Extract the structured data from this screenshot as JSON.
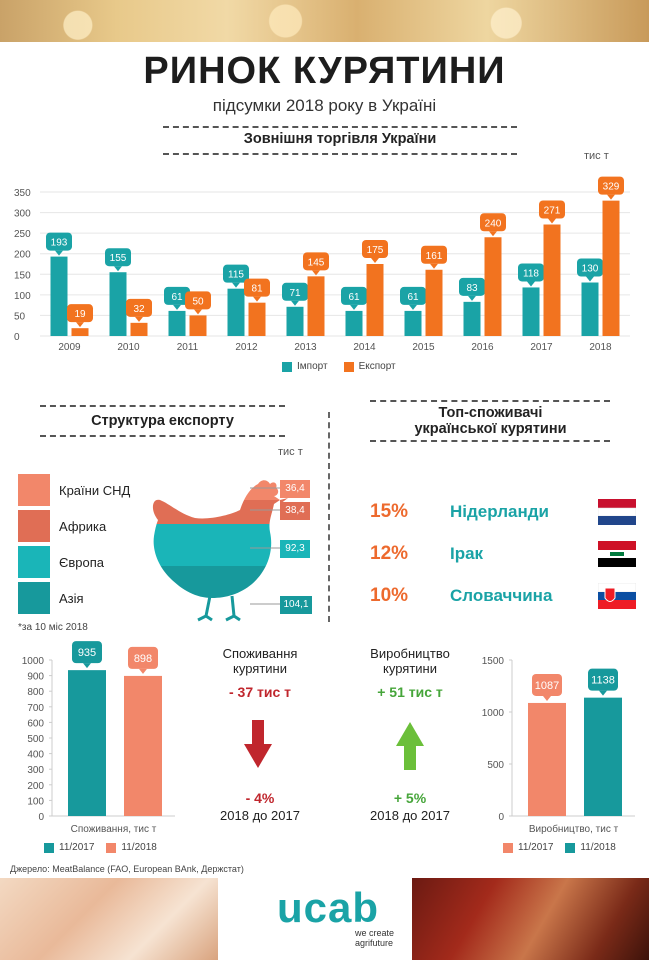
{
  "header": {
    "title": "РИНОК КУРЯТИНИ",
    "subtitle": "підсумки 2018 року в Україні"
  },
  "trade": {
    "heading": "Зовнішня торгівля України",
    "unit": "тис т",
    "legend_import": "Імпорт",
    "legend_export": "Експорт"
  },
  "export_structure": {
    "heading": "Структура експорту",
    "unit": "тис т",
    "note": "*за 10 міс 2018",
    "items": [
      {
        "label": "Країни СНД",
        "value": "36,4",
        "color": "#f2876a"
      },
      {
        "label": "Африка",
        "value": "38,4",
        "color": "#e06e55"
      },
      {
        "label": "Європа",
        "value": "92,3",
        "color": "#1ab5b8"
      },
      {
        "label": "Азія",
        "value": "104,1",
        "color": "#17999c"
      }
    ]
  },
  "top_consumers": {
    "heading_line1": "Топ-споживачі",
    "heading_line2": "української курятини",
    "items": [
      {
        "pct": "15%",
        "country": "Нідерланди",
        "flag_icon": "netherlands-flag-icon"
      },
      {
        "pct": "12%",
        "country": "Ірак",
        "flag_icon": "iraq-flag-icon"
      },
      {
        "pct": "10%",
        "country": "Словаччина",
        "flag_icon": "slovakia-flag-icon"
      }
    ]
  },
  "consumption": {
    "heading_line1": "Споживання",
    "heading_line2": "курятини",
    "delta": "- 37 тис т",
    "pct": "- 4%",
    "compare": "2018 до 2017",
    "arrow_icon": "arrow-down-icon"
  },
  "production": {
    "heading_line1": "Виробництво",
    "heading_line2": "курятини",
    "delta": "+ 51 тис т",
    "pct": "+ 5%",
    "compare": "2018 до 2017",
    "arrow_icon": "arrow-up-icon"
  },
  "footer": {
    "source": "Джерело: MeatBalance (FAO, European BAnk, Держстат)",
    "logo": "ucab",
    "tagline_line1": "we create",
    "tagline_line2": "agrifuture"
  },
  "colors": {
    "import": "#1aa3a6",
    "export": "#f2731f",
    "prev_year": "#f2876a",
    "curr_year": "#17999c"
  },
  "chart_data": [
    {
      "type": "bar",
      "categories": [
        "2009",
        "2010",
        "2011",
        "2012",
        "2013",
        "2014",
        "2015",
        "2016",
        "2017",
        "2018"
      ],
      "series": [
        {
          "name": "Імпорт",
          "values": [
            193,
            155,
            61,
            115,
            71,
            61,
            61,
            83,
            118,
            130
          ]
        },
        {
          "name": "Експорт",
          "values": [
            19,
            32,
            50,
            81,
            145,
            175,
            161,
            240,
            271,
            329
          ]
        }
      ],
      "ylim": [
        0,
        350
      ],
      "yticks": [
        0,
        50,
        100,
        150,
        200,
        250,
        300,
        350
      ],
      "ylabel": "тис т",
      "title": "Зовнішня торгівля України",
      "legend": "bottom"
    },
    {
      "type": "bar",
      "categories": [
        "11/2017",
        "11/2018"
      ],
      "values": [
        935,
        898
      ],
      "xlabel": "Споживання, тис т",
      "ylim": [
        0,
        1000
      ],
      "yticks": [
        0,
        100,
        200,
        300,
        400,
        500,
        600,
        700,
        800,
        900,
        1000
      ],
      "legend": "bottom"
    },
    {
      "type": "bar",
      "categories": [
        "11/2017",
        "11/2018"
      ],
      "values": [
        1087,
        1138
      ],
      "xlabel": "Виробництво, тис т",
      "ylim": [
        0,
        1500
      ],
      "yticks": [
        0,
        500,
        1000,
        1500
      ],
      "legend": "bottom"
    }
  ]
}
